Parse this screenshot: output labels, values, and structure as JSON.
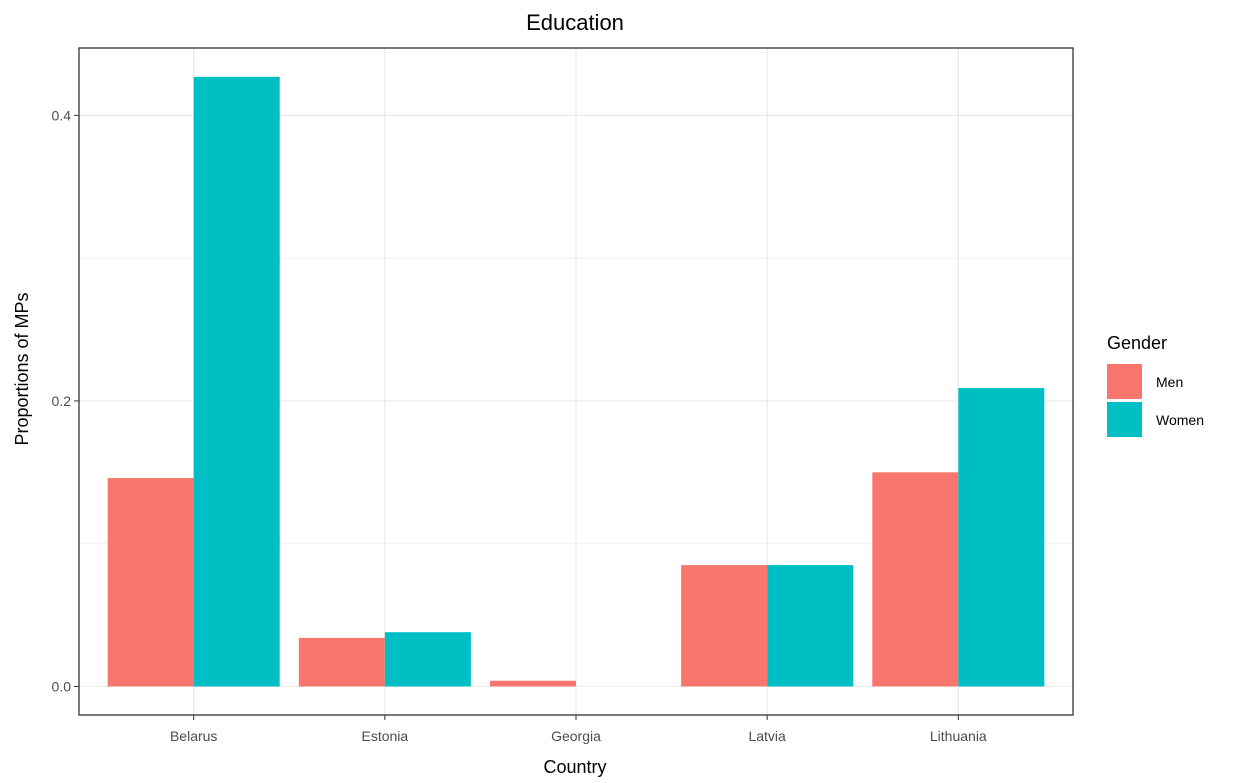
{
  "chart_data": {
    "type": "bar",
    "title": "Education",
    "xlabel": "Country",
    "ylabel": "Proportions of MPs",
    "categories": [
      "Belarus",
      "Estonia",
      "Georgia",
      "Latvia",
      "Lithuania"
    ],
    "series": [
      {
        "name": "Men",
        "color": "#F8766D",
        "values": [
          0.146,
          0.034,
          0.004,
          0.085,
          0.15
        ]
      },
      {
        "name": "Women",
        "color": "#00BFC4",
        "values": [
          0.427,
          0.038,
          0,
          0.085,
          0.209
        ]
      }
    ],
    "ylim": [
      -0.02,
      0.4472
    ],
    "yticks": [
      0.0,
      0.2,
      0.4
    ],
    "ytick_labels": [
      "0.0",
      "0.2",
      "0.4"
    ],
    "grid": true,
    "legend": {
      "title": "Gender",
      "position": "right"
    }
  }
}
